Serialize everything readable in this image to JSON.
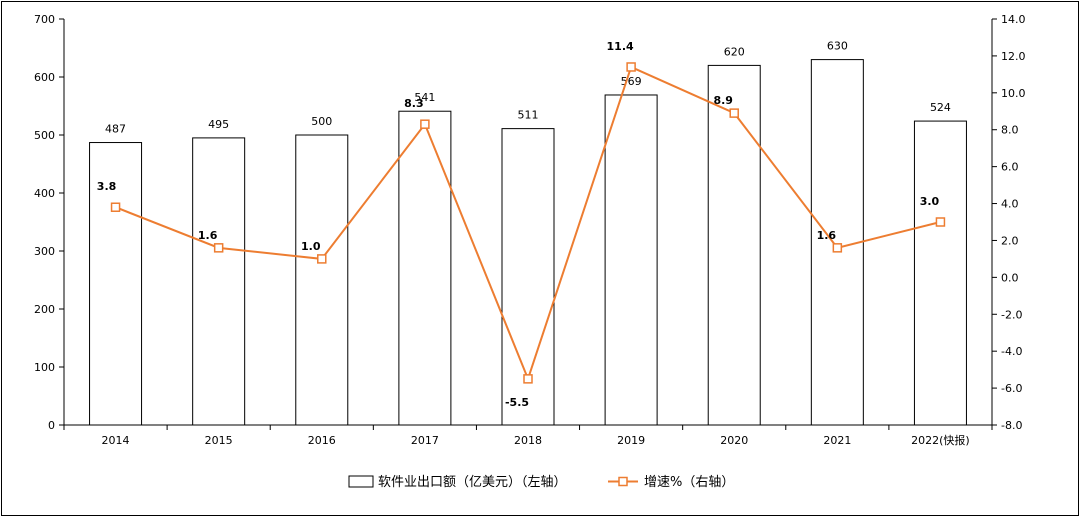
{
  "chart_data": {
    "type": "bar",
    "categories": [
      "2014",
      "2015",
      "2016",
      "2017",
      "2018",
      "2019",
      "2020",
      "2021",
      "2022(快报)"
    ],
    "series": [
      {
        "name": "软件业出口额（亿美元）（左轴）",
        "type": "bar",
        "axis": "left",
        "values": [
          487,
          495,
          500,
          541,
          511,
          569,
          620,
          630,
          524
        ],
        "labels": [
          "487",
          "495",
          "500",
          "541",
          "511",
          "569",
          "620",
          "630",
          "524"
        ]
      },
      {
        "name": "增速%（右轴）",
        "type": "line",
        "axis": "right",
        "values": [
          3.8,
          1.6,
          1.0,
          8.3,
          -5.5,
          11.4,
          8.9,
          1.6,
          3.0
        ],
        "labels": [
          "3.8",
          "1.6",
          "1.0",
          "8.3",
          "-5.5",
          "11.4",
          "8.9",
          "1.6",
          "3.0"
        ]
      }
    ],
    "y_left": {
      "range": [
        0,
        700
      ],
      "ticks": [
        0,
        100,
        200,
        300,
        400,
        500,
        600,
        700
      ],
      "tick_labels": [
        "0",
        "100",
        "200",
        "300",
        "400",
        "500",
        "600",
        "700"
      ]
    },
    "y_right": {
      "range": [
        -8,
        14
      ],
      "ticks": [
        -8,
        -6,
        -4,
        -2,
        0,
        2,
        4,
        6,
        8,
        10,
        12,
        14
      ],
      "tick_labels": [
        "-8.0",
        "-6.0",
        "-4.0",
        "-2.0",
        "0.0",
        "2.0",
        "4.0",
        "6.0",
        "8.0",
        "10.0",
        "12.0",
        "14.0"
      ]
    },
    "grid": false,
    "legend_position": "bottom",
    "colors": {
      "bar_fill": "#ffffff",
      "bar_stroke": "#000000",
      "line": "#ED7D31",
      "marker_fill": "#ffffff"
    }
  }
}
